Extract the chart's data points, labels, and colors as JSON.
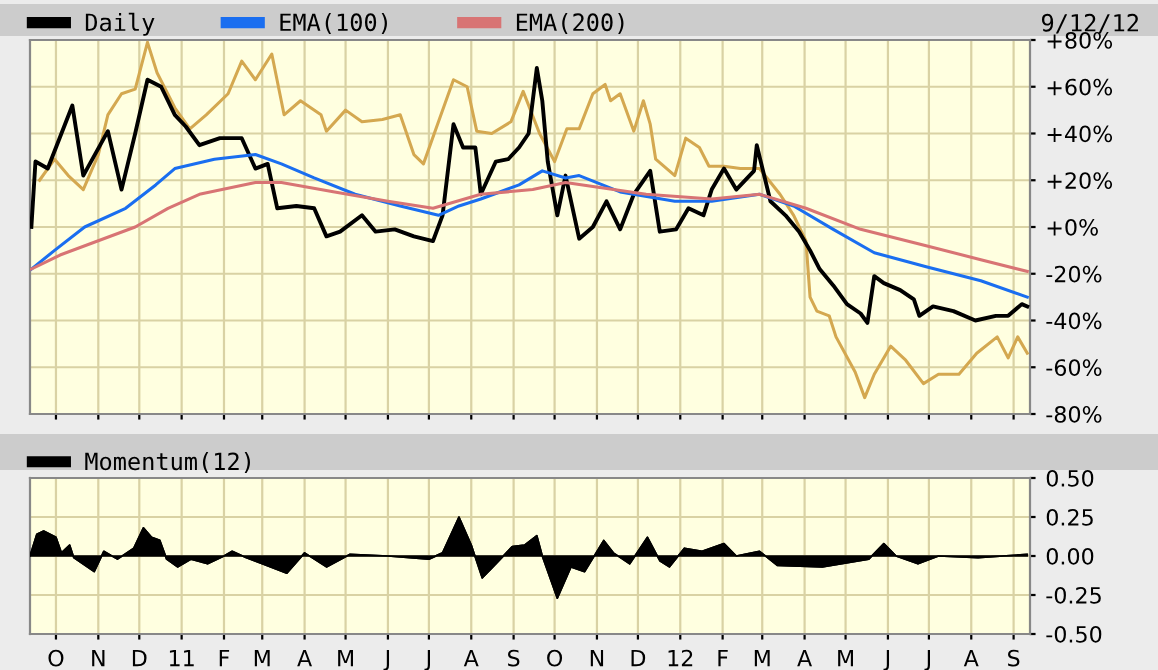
{
  "chart_data": [
    {
      "type": "line",
      "legend": "top",
      "grid": true,
      "tick_labels": "y",
      "annotations": [
        "9/12/12"
      ],
      "xlim": [
        "2010-09-12",
        "2012-09-13"
      ],
      "xticks": [
        {
          "value": "2010-10-01",
          "label": null
        },
        {
          "value": "2010-11-01",
          "label": null
        },
        {
          "value": "2010-12-01",
          "label": null
        },
        {
          "value": "2011-01-01",
          "label": null
        },
        {
          "value": "2011-02-01",
          "label": null
        },
        {
          "value": "2011-03-01",
          "label": null
        },
        {
          "value": "2011-04-01",
          "label": null
        },
        {
          "value": "2011-05-01",
          "label": null
        },
        {
          "value": "2011-06-01",
          "label": null
        },
        {
          "value": "2011-07-01",
          "label": null
        },
        {
          "value": "2011-08-01",
          "label": null
        },
        {
          "value": "2011-09-01",
          "label": null
        },
        {
          "value": "2011-10-01",
          "label": null
        },
        {
          "value": "2011-11-01",
          "label": null
        },
        {
          "value": "2011-12-01",
          "label": null
        },
        {
          "value": "2012-01-01",
          "label": null
        },
        {
          "value": "2012-02-01",
          "label": null
        },
        {
          "value": "2012-03-01",
          "label": null
        },
        {
          "value": "2012-04-01",
          "label": null
        },
        {
          "value": "2012-05-01",
          "label": null
        },
        {
          "value": "2012-06-01",
          "label": null
        },
        {
          "value": "2012-07-01",
          "label": null
        },
        {
          "value": "2012-08-01",
          "label": null
        },
        {
          "value": "2012-09-01",
          "label": null
        }
      ],
      "ylim": [
        -80,
        80
      ],
      "yticks": [
        {
          "value": -80,
          "label": "-80%"
        },
        {
          "value": -60,
          "label": "-60%"
        },
        {
          "value": -40,
          "label": "-40%"
        },
        {
          "value": -20,
          "label": "-20%"
        },
        {
          "value": 0,
          "label": "+0%"
        },
        {
          "value": 20,
          "label": "+20%"
        },
        {
          "value": 40,
          "label": "+40%"
        },
        {
          "value": 60,
          "label": "+60%"
        },
        {
          "value": 80,
          "label": "+80%"
        }
      ],
      "series": [
        {
          "color": "#d4a850",
          "x": [
            "2010-09-19",
            "2010-09-30",
            "2010-10-10",
            "2010-10-21",
            "2010-11-01",
            "2010-11-08",
            "2010-11-18",
            "2010-11-28",
            "2010-12-07",
            "2010-12-14",
            "2010-12-27",
            "2011-01-07",
            "2011-01-19",
            "2011-02-04",
            "2011-02-14",
            "2011-02-24",
            "2011-03-08",
            "2011-03-17",
            "2011-03-29",
            "2011-04-13",
            "2011-04-17",
            "2011-05-01",
            "2011-05-13",
            "2011-05-28",
            "2011-06-10",
            "2011-06-20",
            "2011-06-27",
            "2011-07-08",
            "2011-07-19",
            "2011-07-29",
            "2011-08-05",
            "2011-08-16",
            "2011-08-30",
            "2011-09-08",
            "2011-09-20",
            "2011-10-01",
            "2011-10-10",
            "2011-10-19",
            "2011-10-29",
            "2011-11-07",
            "2011-11-11",
            "2011-11-18",
            "2011-11-28",
            "2011-12-05",
            "2011-12-10",
            "2011-12-14",
            "2011-12-28",
            "2012-01-05",
            "2012-01-15",
            "2012-01-22",
            "2012-02-02",
            "2012-02-14",
            "2012-02-28",
            "2012-03-14",
            "2012-03-24",
            "2012-04-02",
            "2012-04-05",
            "2012-04-10",
            "2012-04-19",
            "2012-04-24",
            "2012-05-08",
            "2012-05-15",
            "2012-05-22",
            "2012-06-03",
            "2012-06-14",
            "2012-06-27",
            "2012-07-08",
            "2012-07-23",
            "2012-08-05",
            "2012-08-20",
            "2012-08-28",
            "2012-09-04",
            "2012-09-11"
          ],
          "values": [
            20,
            29,
            22,
            16,
            31,
            48,
            57,
            59,
            79,
            66,
            51,
            42,
            48,
            57,
            71,
            63,
            74,
            48,
            54,
            48,
            41,
            50,
            45,
            46,
            48,
            31,
            27,
            45,
            63,
            60,
            41,
            40,
            45,
            58,
            40,
            28,
            42,
            42,
            57,
            61,
            54,
            57,
            41,
            54,
            44,
            29,
            22,
            38,
            34,
            26,
            26,
            25,
            25,
            14,
            5,
            -6,
            -30,
            -36,
            -38,
            -47,
            -62,
            -73,
            -63,
            -51,
            -57,
            -67,
            -63,
            -63,
            -54,
            -47,
            -56,
            -47,
            -54
          ]
        },
        {
          "name": "Daily",
          "color": "#000000",
          "x": [
            "2010-09-13",
            "2010-09-16",
            "2010-09-25",
            "2010-10-13",
            "2010-10-21",
            "2010-11-08",
            "2010-11-18",
            "2010-11-28",
            "2010-12-07",
            "2010-12-17",
            "2010-12-27",
            "2011-01-04",
            "2011-01-14",
            "2011-01-29",
            "2011-02-14",
            "2011-02-24",
            "2011-03-05",
            "2011-03-12",
            "2011-03-26",
            "2011-04-08",
            "2011-04-17",
            "2011-04-27",
            "2011-05-13",
            "2011-05-23",
            "2011-06-06",
            "2011-06-20",
            "2011-07-04",
            "2011-07-11",
            "2011-07-19",
            "2011-07-26",
            "2011-08-04",
            "2011-08-08",
            "2011-08-19",
            "2011-08-28",
            "2011-09-05",
            "2011-09-12",
            "2011-09-18",
            "2011-09-22",
            "2011-09-26",
            "2011-10-03",
            "2011-10-09",
            "2011-10-19",
            "2011-10-29",
            "2011-11-08",
            "2011-11-18",
            "2011-11-28",
            "2011-12-10",
            "2011-12-17",
            "2011-12-29",
            "2012-01-07",
            "2012-01-18",
            "2012-01-24",
            "2012-02-02",
            "2012-02-11",
            "2012-02-24",
            "2012-02-26",
            "2012-03-07",
            "2012-03-18",
            "2012-03-28",
            "2012-04-05",
            "2012-04-12",
            "2012-04-22",
            "2012-05-02",
            "2012-05-12",
            "2012-05-17",
            "2012-05-22",
            "2012-05-29",
            "2012-06-10",
            "2012-06-20",
            "2012-06-24",
            "2012-07-04",
            "2012-07-19",
            "2012-08-04",
            "2012-08-19",
            "2012-08-28",
            "2012-09-07",
            "2012-09-11"
          ],
          "values": [
            0,
            28,
            25,
            52,
            22,
            41,
            16,
            40,
            63,
            60,
            48,
            43,
            35,
            38,
            38,
            25,
            27,
            8,
            9,
            8,
            -4,
            -2,
            5,
            -2,
            -1,
            -4,
            -6,
            5,
            44,
            34,
            34,
            14,
            28,
            29,
            34,
            40,
            68,
            54,
            28,
            5,
            22,
            -5,
            0,
            11,
            -1,
            14,
            24,
            -2,
            -1,
            8,
            5,
            16,
            25,
            16,
            24,
            35,
            11,
            5,
            -2,
            -10,
            -18,
            -25,
            -33,
            -37,
            -41,
            -21,
            -24,
            -27,
            -31,
            -38,
            -34,
            -36,
            -40,
            -38,
            -38,
            -33,
            -34
          ]
        },
        {
          "name": "EMA(100)",
          "color": "#1a6ef0",
          "x": [
            "2010-09-13",
            "2010-09-30",
            "2010-10-22",
            "2010-11-21",
            "2010-12-13",
            "2010-12-27",
            "2011-01-25",
            "2011-02-24",
            "2011-03-15",
            "2011-04-08",
            "2011-05-08",
            "2011-06-10",
            "2011-07-08",
            "2011-07-23",
            "2011-08-08",
            "2011-09-05",
            "2011-09-22",
            "2011-10-09",
            "2011-10-19",
            "2011-11-18",
            "2011-12-28",
            "2012-01-24",
            "2012-02-28",
            "2012-03-24",
            "2012-04-22",
            "2012-05-22",
            "2012-06-29",
            "2012-08-08",
            "2012-09-11"
          ],
          "values": [
            -18,
            -10,
            0,
            8,
            18,
            25,
            29,
            31,
            27,
            21,
            14,
            9,
            5,
            9,
            12,
            18,
            24,
            21,
            22,
            15,
            11,
            11,
            14,
            9,
            -1,
            -11,
            -17,
            -23,
            -30
          ]
        },
        {
          "name": "EMA(200)",
          "color": "#d87474",
          "x": [
            "2010-09-13",
            "2010-10-04",
            "2010-11-28",
            "2010-12-22",
            "2011-01-14",
            "2011-02-24",
            "2011-03-15",
            "2011-04-23",
            "2011-06-01",
            "2011-07-04",
            "2011-08-08",
            "2011-09-15",
            "2011-10-09",
            "2011-12-07",
            "2012-01-24",
            "2012-02-28",
            "2012-04-02",
            "2012-05-12",
            "2012-06-29",
            "2012-08-08",
            "2012-09-11"
          ],
          "values": [
            -18,
            -12,
            0,
            8,
            14,
            19,
            19,
            15,
            11,
            8,
            14,
            16,
            19,
            14,
            12,
            14,
            8,
            -1,
            -8,
            -14,
            -19
          ]
        }
      ]
    },
    {
      "type": "area",
      "legend": "top",
      "grid": true,
      "xlim": [
        "2010-09-12",
        "2012-09-13"
      ],
      "xticks": [
        {
          "value": "2010-10-01",
          "label": "O"
        },
        {
          "value": "2010-11-01",
          "label": "N"
        },
        {
          "value": "2010-12-01",
          "label": "D"
        },
        {
          "value": "2011-01-01",
          "label": "11"
        },
        {
          "value": "2011-02-01",
          "label": "F"
        },
        {
          "value": "2011-03-01",
          "label": "M"
        },
        {
          "value": "2011-04-01",
          "label": "A"
        },
        {
          "value": "2011-05-01",
          "label": "M"
        },
        {
          "value": "2011-06-01",
          "label": "J"
        },
        {
          "value": "2011-07-01",
          "label": "J"
        },
        {
          "value": "2011-08-01",
          "label": "A"
        },
        {
          "value": "2011-09-01",
          "label": "S"
        },
        {
          "value": "2011-10-01",
          "label": "O"
        },
        {
          "value": "2011-11-01",
          "label": "N"
        },
        {
          "value": "2011-12-01",
          "label": "D"
        },
        {
          "value": "2012-01-01",
          "label": "12"
        },
        {
          "value": "2012-02-01",
          "label": "F"
        },
        {
          "value": "2012-03-01",
          "label": "M"
        },
        {
          "value": "2012-04-01",
          "label": "A"
        },
        {
          "value": "2012-05-01",
          "label": "M"
        },
        {
          "value": "2012-06-01",
          "label": "J"
        },
        {
          "value": "2012-07-01",
          "label": "J"
        },
        {
          "value": "2012-08-01",
          "label": "A"
        },
        {
          "value": "2012-09-01",
          "label": "S"
        }
      ],
      "ylim": [
        -0.5,
        0.5
      ],
      "yticks": [
        {
          "value": -0.5,
          "label": "-0.50"
        },
        {
          "value": -0.25,
          "label": "-0.25"
        },
        {
          "value": 0,
          "label": "0.00"
        },
        {
          "value": 0.25,
          "label": "0.25"
        },
        {
          "value": 0.5,
          "label": "0.50"
        }
      ],
      "series": [
        {
          "name": "Momentum(12)",
          "color": "#000000",
          "x": [
            "2010-09-12",
            "2010-09-17",
            "2010-09-22",
            "2010-10-01",
            "2010-10-05",
            "2010-10-11",
            "2010-10-14",
            "2010-10-29",
            "2010-11-05",
            "2010-11-15",
            "2010-11-27",
            "2010-12-04",
            "2010-12-10",
            "2010-12-16",
            "2010-12-21",
            "2010-12-29",
            "2011-01-08",
            "2011-01-20",
            "2011-02-01",
            "2011-02-07",
            "2011-02-17",
            "2011-03-01",
            "2011-03-19",
            "2011-04-01",
            "2011-04-17",
            "2011-05-04",
            "2011-06-01",
            "2011-07-01",
            "2011-07-11",
            "2011-07-23",
            "2011-08-01",
            "2011-08-09",
            "2011-08-19",
            "2011-08-31",
            "2011-09-09",
            "2011-09-18",
            "2011-09-22",
            "2011-10-03",
            "2011-10-13",
            "2011-10-23",
            "2011-11-06",
            "2011-11-13",
            "2011-11-25",
            "2011-12-08",
            "2011-12-17",
            "2011-12-24",
            "2012-01-04",
            "2012-01-17",
            "2012-02-02",
            "2012-02-11",
            "2012-02-28",
            "2012-03-12",
            "2012-04-14",
            "2012-05-18",
            "2012-05-29",
            "2012-06-07",
            "2012-06-23",
            "2012-07-08",
            "2012-08-06",
            "2012-09-11"
          ],
          "values": [
            0,
            0.14,
            0.16,
            0.12,
            0.02,
            0.07,
            -0.01,
            -0.1,
            0.03,
            -0.02,
            0.05,
            0.18,
            0.12,
            0.1,
            -0.02,
            -0.07,
            -0.02,
            -0.05,
            0,
            0.03,
            -0.01,
            -0.05,
            -0.11,
            0.02,
            -0.07,
            0.01,
            0,
            -0.02,
            0.02,
            0.25,
            0.07,
            -0.14,
            -0.05,
            0.06,
            0.07,
            0.13,
            0,
            -0.27,
            -0.07,
            -0.1,
            0.1,
            0.02,
            -0.05,
            0.12,
            -0.03,
            -0.07,
            0.05,
            0.03,
            0.08,
            0,
            0.03,
            -0.06,
            -0.07,
            -0.02,
            0.08,
            0,
            -0.05,
            0,
            -0.01,
            0.01
          ]
        }
      ]
    }
  ]
}
